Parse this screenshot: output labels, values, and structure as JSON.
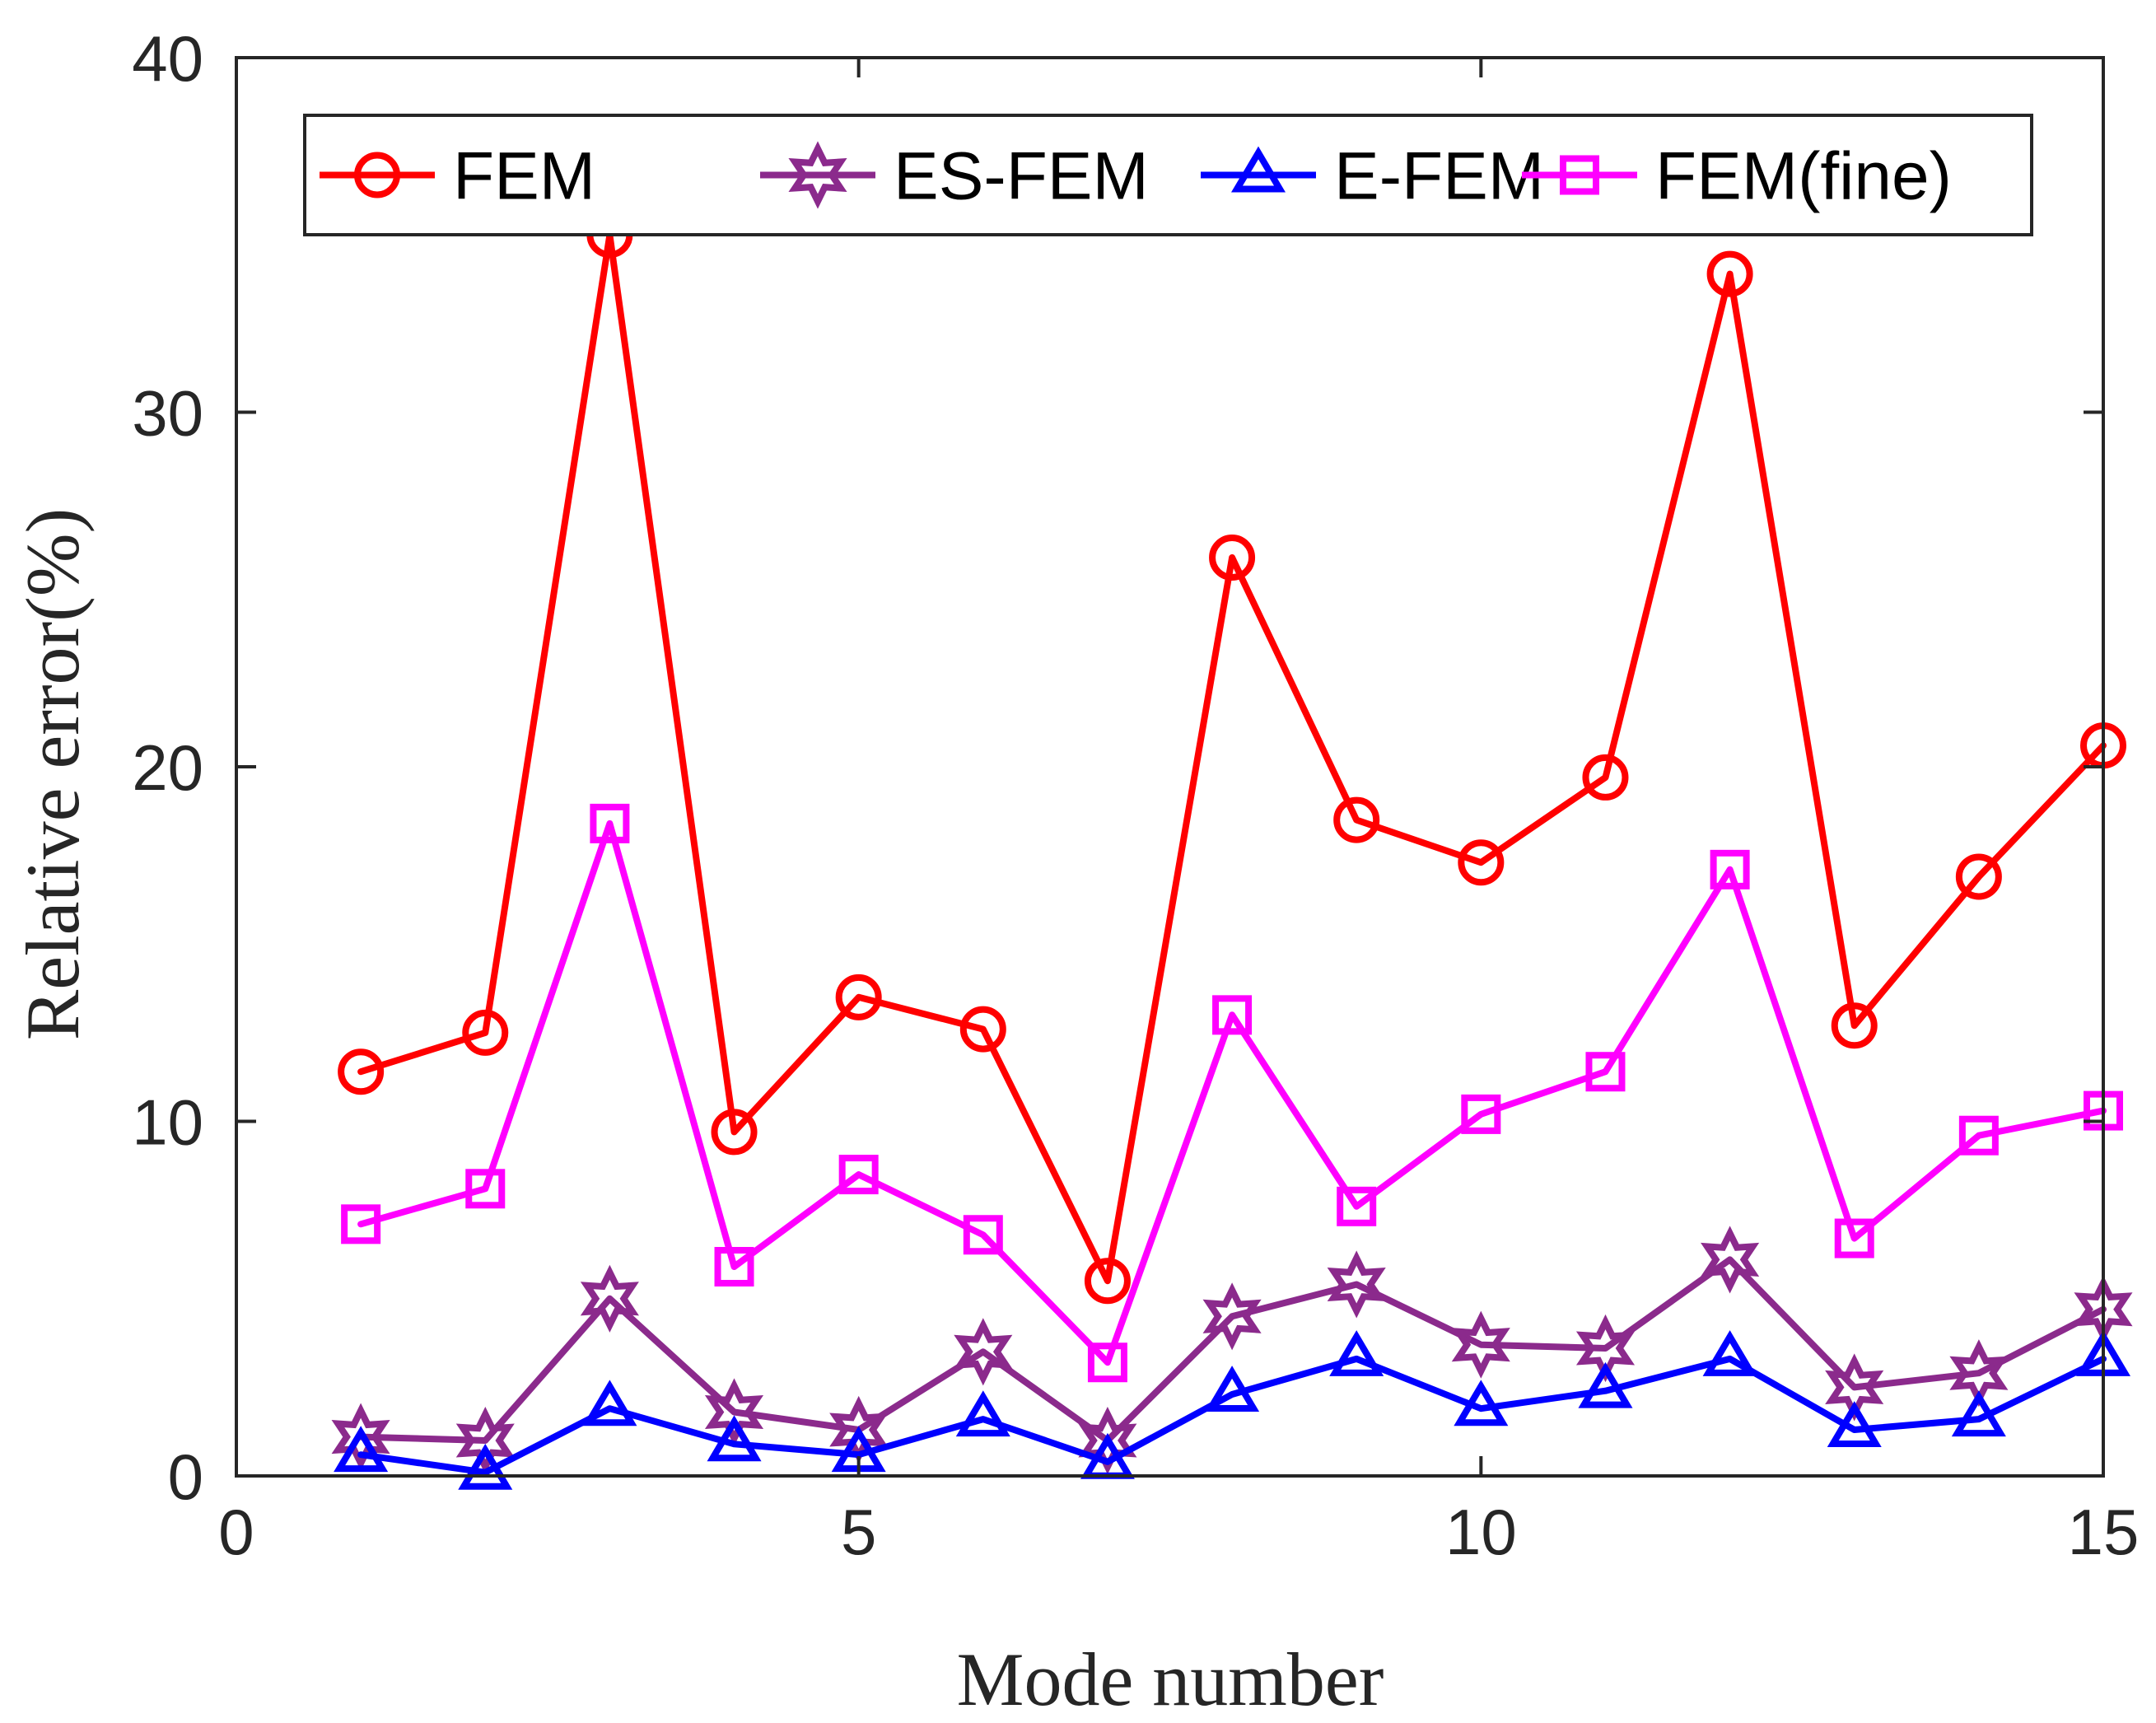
{
  "chart_data": {
    "type": "line",
    "title": "",
    "xlabel": "Mode number",
    "ylabel": "Relative error(%)",
    "xlim": [
      0,
      15
    ],
    "ylim": [
      0,
      40
    ],
    "xticks": [
      "0",
      "5",
      "10",
      "15"
    ],
    "yticks": [
      "0",
      "10",
      "20",
      "30",
      "40"
    ],
    "grid": false,
    "legend_position": "top",
    "x": [
      1,
      2,
      3,
      4,
      5,
      6,
      7,
      8,
      9,
      10,
      11,
      12,
      13,
      14,
      15
    ],
    "series": [
      {
        "name": "FEM",
        "color": "#ff0000",
        "marker": "circle",
        "values": [
          11.4,
          12.5,
          35.0,
          9.7,
          13.5,
          12.6,
          5.5,
          25.9,
          18.5,
          17.3,
          19.7,
          33.9,
          12.7,
          16.9,
          20.6
        ]
      },
      {
        "name": "ES-FEM",
        "color": "#8b2a8c",
        "marker": "hexagram",
        "values": [
          1.1,
          1.0,
          5.0,
          1.8,
          1.3,
          3.5,
          1.0,
          4.5,
          5.4,
          3.7,
          3.6,
          6.1,
          2.5,
          2.9,
          4.7
        ]
      },
      {
        "name": "E-FEM",
        "color": "#0000ff",
        "marker": "triangle",
        "values": [
          0.6,
          0.1,
          1.9,
          0.9,
          0.6,
          1.6,
          0.4,
          2.3,
          3.3,
          1.9,
          2.4,
          3.3,
          1.3,
          1.6,
          3.3
        ]
      },
      {
        "name": "FEM(fine)",
        "color": "#ff00ff",
        "marker": "square",
        "values": [
          7.1,
          8.1,
          18.4,
          5.9,
          8.5,
          6.8,
          3.2,
          13.0,
          7.6,
          10.2,
          11.4,
          17.1,
          6.7,
          9.6,
          10.3
        ]
      }
    ]
  }
}
